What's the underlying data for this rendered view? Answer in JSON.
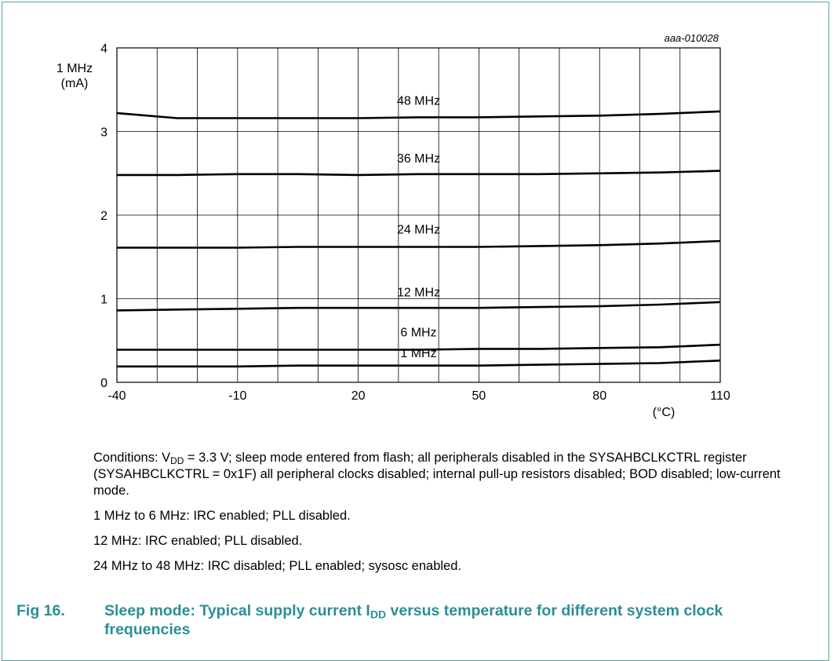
{
  "chart_data": {
    "type": "line",
    "id_label": "aaa-010028",
    "ylabel_line1": "1 MHz",
    "ylabel_line2": "(mA)",
    "xunit": "(°C)",
    "xlim": [
      -40,
      110
    ],
    "ylim": [
      0,
      4
    ],
    "x_ticks": [
      "-40",
      "-10",
      "20",
      "50",
      "80",
      "110"
    ],
    "y_ticks": [
      "0",
      "1",
      "2",
      "3",
      "4"
    ],
    "grid": true,
    "series": [
      {
        "name": "48 MHz",
        "x": [
          -40,
          -25,
          -10,
          5,
          20,
          35,
          50,
          65,
          80,
          95,
          110
        ],
        "values": [
          3.22,
          3.16,
          3.16,
          3.16,
          3.16,
          3.17,
          3.17,
          3.18,
          3.19,
          3.21,
          3.24
        ]
      },
      {
        "name": "36 MHz",
        "x": [
          -40,
          -25,
          -10,
          5,
          20,
          35,
          50,
          65,
          80,
          95,
          110
        ],
        "values": [
          2.48,
          2.48,
          2.49,
          2.49,
          2.48,
          2.49,
          2.49,
          2.49,
          2.5,
          2.51,
          2.53
        ]
      },
      {
        "name": "24 MHz",
        "x": [
          -40,
          -25,
          -10,
          5,
          20,
          35,
          50,
          65,
          80,
          95,
          110
        ],
        "values": [
          1.61,
          1.61,
          1.61,
          1.62,
          1.62,
          1.62,
          1.62,
          1.63,
          1.64,
          1.66,
          1.69
        ]
      },
      {
        "name": "12 MHz",
        "x": [
          -40,
          -25,
          -10,
          5,
          20,
          35,
          50,
          65,
          80,
          95,
          110
        ],
        "values": [
          0.86,
          0.87,
          0.88,
          0.89,
          0.89,
          0.89,
          0.89,
          0.9,
          0.91,
          0.93,
          0.96
        ]
      },
      {
        "name": "6 MHz",
        "x": [
          -40,
          -25,
          -10,
          5,
          20,
          35,
          50,
          65,
          80,
          95,
          110
        ],
        "values": [
          0.39,
          0.39,
          0.39,
          0.39,
          0.39,
          0.39,
          0.4,
          0.4,
          0.41,
          0.42,
          0.45
        ]
      },
      {
        "name": "1 MHz",
        "x": [
          -40,
          -25,
          -10,
          5,
          20,
          35,
          50,
          65,
          80,
          95,
          110
        ],
        "values": [
          0.19,
          0.19,
          0.19,
          0.2,
          0.2,
          0.2,
          0.2,
          0.21,
          0.22,
          0.23,
          0.26
        ]
      }
    ],
    "series_label_x": [
      35,
      35,
      35,
      35,
      35,
      35
    ],
    "series_label_y": [
      3.32,
      2.63,
      1.78,
      1.03,
      0.55,
      0.3
    ]
  },
  "notes": {
    "conditions_prefix": "Conditions: V",
    "conditions_sub": "DD",
    "conditions_rest": " = 3.3 V; sleep mode entered from flash; all peripherals disabled in the SYSAHBCLKCTRL register (SYSAHBCLKCTRL = 0x1F) all peripheral clocks disabled; internal pull-up resistors disabled; BOD disabled; low-current mode.",
    "line1": "1 MHz to 6 MHz: IRC enabled; PLL disabled.",
    "line2": "12 MHz: IRC enabled; PLL disabled.",
    "line3": "24 MHz to 48 MHz: IRC disabled; PLL enabled; sysosc enabled."
  },
  "caption": {
    "label": "Fig 16.",
    "text_a": "Sleep mode: Typical supply current I",
    "text_sub": "DD",
    "text_b": " versus temperature for different system clock frequencies"
  }
}
